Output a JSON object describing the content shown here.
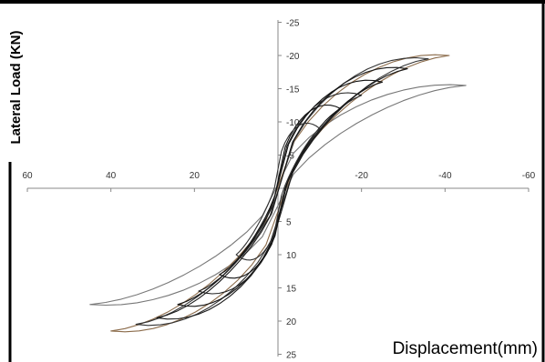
{
  "chart_data": {
    "type": "line",
    "title": "",
    "xlabel": "Displacement(mm)",
    "ylabel": "Lateral Load (KN)",
    "xlim": [
      60,
      -60
    ],
    "ylim": [
      -25,
      25
    ],
    "x_ticks": [
      60,
      40,
      20,
      0,
      -20,
      -40,
      -60
    ],
    "x_tick_labels": [
      "60",
      "40",
      "20",
      "",
      "-20",
      "-40",
      "-60"
    ],
    "y_ticks": [
      -25,
      -20,
      -15,
      -10,
      -5,
      0,
      5,
      10,
      15,
      20,
      25
    ],
    "y_tick_labels": [
      "-25",
      "-20",
      "-15",
      "-10",
      "-5",
      "",
      "5",
      "10",
      "15",
      "20",
      "25"
    ],
    "grid": false,
    "series": [
      {
        "peak_pos": [
          45,
          17.5
        ],
        "peak_neg": [
          -45,
          -15.5
        ],
        "color": "#777777"
      },
      {
        "peak_pos": [
          40,
          21.5
        ],
        "peak_neg": [
          -41,
          -20.0
        ],
        "color": "#8B6B4A"
      },
      {
        "peak_pos": [
          34,
          20.5
        ],
        "peak_neg": [
          -36,
          -19.5
        ],
        "color": "#333333"
      },
      {
        "peak_pos": [
          29,
          19.5
        ],
        "peak_neg": [
          -31,
          -18.0
        ],
        "color": "#1a1a1a"
      },
      {
        "peak_pos": [
          24,
          17.5
        ],
        "peak_neg": [
          -25,
          -16.0
        ],
        "color": "#111111"
      },
      {
        "peak_pos": [
          19,
          15.5
        ],
        "peak_neg": [
          -20,
          -14.0
        ],
        "color": "#222222"
      },
      {
        "peak_pos": [
          14,
          13.0
        ],
        "peak_neg": [
          -15,
          -12.0
        ],
        "color": "#111111"
      },
      {
        "peak_pos": [
          10,
          10.0
        ],
        "peak_neg": [
          -10,
          -9.0
        ],
        "color": "#333333"
      }
    ]
  }
}
